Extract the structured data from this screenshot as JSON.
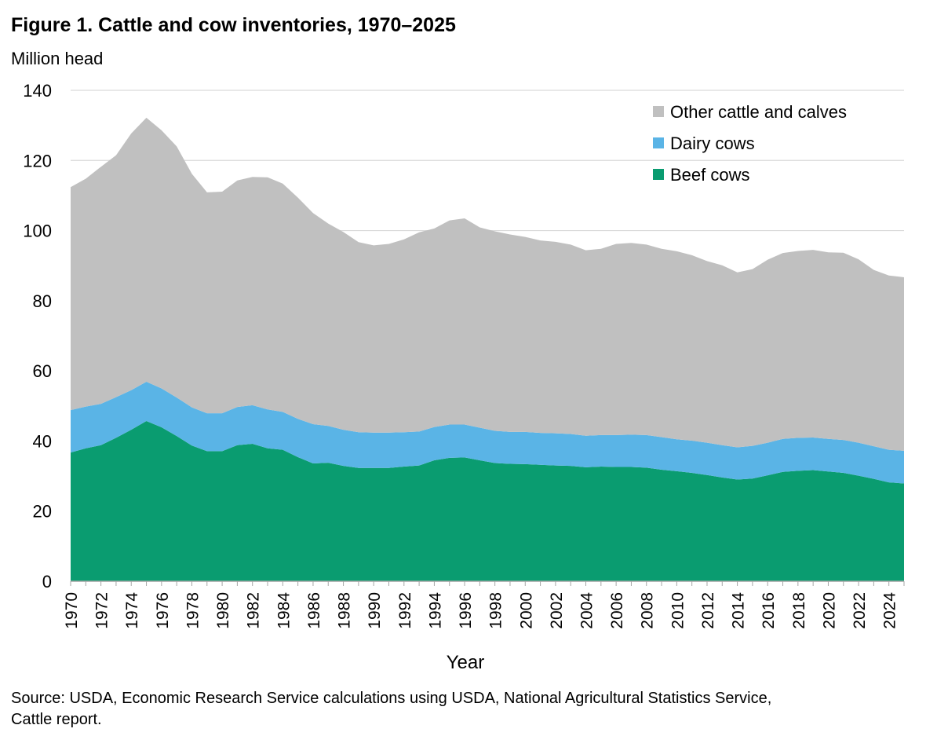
{
  "figure": {
    "title": "Figure 1. Cattle and cow inventories, 1970–2025",
    "units": "Million head",
    "source_line1": "Source: USDA, Economic Research Service calculations using USDA, National Agricultural Statistics Service,",
    "source_line2": "Cattle report."
  },
  "chart_data": {
    "type": "area",
    "stacked": true,
    "title": "Figure 1. Cattle and cow inventories, 1970–2025",
    "xlabel": "Year",
    "ylabel": "Million head",
    "ylim": [
      0,
      140
    ],
    "yticks": [
      0,
      20,
      40,
      60,
      80,
      100,
      120,
      140
    ],
    "grid": true,
    "legend_position": "top-right",
    "x": [
      1970,
      1971,
      1972,
      1973,
      1974,
      1975,
      1976,
      1977,
      1978,
      1979,
      1980,
      1981,
      1982,
      1983,
      1984,
      1985,
      1986,
      1987,
      1988,
      1989,
      1990,
      1991,
      1992,
      1993,
      1994,
      1995,
      1996,
      1997,
      1998,
      1999,
      2000,
      2001,
      2002,
      2003,
      2004,
      2005,
      2006,
      2007,
      2008,
      2009,
      2010,
      2011,
      2012,
      2013,
      2014,
      2015,
      2016,
      2017,
      2018,
      2019,
      2020,
      2021,
      2022,
      2023,
      2024,
      2025
    ],
    "xtick_labels": [
      "1970",
      "1972",
      "1974",
      "1976",
      "1978",
      "1980",
      "1982",
      "1984",
      "1986",
      "1988",
      "1990",
      "1992",
      "1994",
      "1996",
      "1998",
      "2000",
      "2002",
      "2004",
      "2006",
      "2008",
      "2010",
      "2012",
      "2014",
      "2016",
      "2018",
      "2020",
      "2022",
      "2024"
    ],
    "series": [
      {
        "name": "Beef cows",
        "color": "#0a9c70",
        "values": [
          36.7,
          37.9,
          38.8,
          40.9,
          43.2,
          45.7,
          43.9,
          41.4,
          38.7,
          37.1,
          37.1,
          38.8,
          39.2,
          37.9,
          37.5,
          35.4,
          33.6,
          33.8,
          32.9,
          32.3,
          32.3,
          32.3,
          32.7,
          33.0,
          34.5,
          35.2,
          35.3,
          34.5,
          33.7,
          33.5,
          33.4,
          33.2,
          33.0,
          32.9,
          32.5,
          32.7,
          32.6,
          32.6,
          32.4,
          31.8,
          31.4,
          30.9,
          30.3,
          29.6,
          29.0,
          29.3,
          30.2,
          31.2,
          31.5,
          31.7,
          31.3,
          30.9,
          30.1,
          29.2,
          28.2,
          27.9
        ]
      },
      {
        "name": "Dairy cows",
        "color": "#5ab4e6",
        "values": [
          12.1,
          11.9,
          11.8,
          11.6,
          11.3,
          11.2,
          11.1,
          11.0,
          10.9,
          10.8,
          10.8,
          10.9,
          11.0,
          11.1,
          10.8,
          10.9,
          11.2,
          10.5,
          10.3,
          10.2,
          10.1,
          10.1,
          9.8,
          9.7,
          9.5,
          9.5,
          9.4,
          9.3,
          9.2,
          9.1,
          9.2,
          9.1,
          9.2,
          9.1,
          9.0,
          9.0,
          9.1,
          9.2,
          9.3,
          9.3,
          9.1,
          9.2,
          9.2,
          9.2,
          9.2,
          9.3,
          9.3,
          9.4,
          9.4,
          9.3,
          9.3,
          9.4,
          9.4,
          9.3,
          9.3,
          9.3
        ]
      },
      {
        "name": "Other cattle and calves",
        "color": "#c0c0c0",
        "values": [
          63.6,
          65.0,
          67.6,
          69.0,
          73.2,
          75.3,
          73.6,
          71.6,
          66.6,
          63.0,
          63.2,
          64.6,
          65.1,
          66.2,
          65.1,
          63.1,
          60.2,
          57.7,
          56.4,
          54.2,
          53.4,
          53.8,
          55.0,
          56.8,
          56.6,
          58.2,
          58.8,
          57.1,
          56.9,
          56.3,
          55.6,
          54.9,
          54.6,
          54.0,
          52.9,
          53.1,
          54.5,
          54.7,
          54.3,
          53.7,
          53.6,
          52.9,
          51.8,
          51.3,
          49.9,
          50.4,
          52.2,
          53.0,
          53.3,
          53.5,
          53.2,
          53.4,
          52.3,
          50.3,
          49.7,
          49.5
        ]
      }
    ],
    "legend_order": [
      "Other cattle and calves",
      "Dairy cows",
      "Beef cows"
    ]
  }
}
